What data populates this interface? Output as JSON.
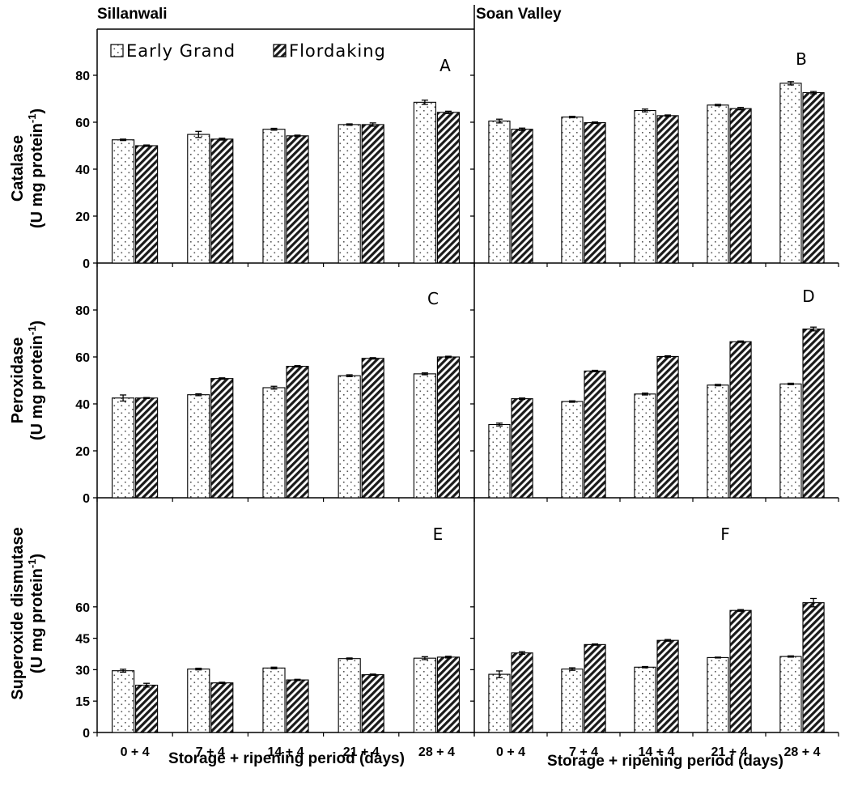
{
  "colors": {
    "text": "#000000",
    "bar_fill_background": "#ffffff",
    "bar_outline": "#000000"
  },
  "sites": [
    "Sillanwali",
    "Soan Valley"
  ],
  "x_axis_label": "Storage + ripening period (days)",
  "y_labels": [
    {
      "line1": "Catalase",
      "line2": "(U mg protein",
      "sup": "-1",
      "close": ")"
    },
    {
      "line1": "Peroxidase",
      "line2": "(U mg protein",
      "sup": "-1",
      "close": ")"
    },
    {
      "line1": "Superoxide dismutase",
      "line2": "(U mg protein",
      "sup": "-1",
      "close": ")"
    }
  ],
  "legend": [
    {
      "name": "Early Grand",
      "pattern": "dots"
    },
    {
      "name": "Flordaking",
      "pattern": "hatch"
    }
  ],
  "chart_data": [
    {
      "type": "bar",
      "panel": "A",
      "site": "Sillanwali",
      "enzyme": "Catalase",
      "categories": [
        "0 + 4",
        "7 + 4",
        "14 + 4",
        "21 + 4",
        "28 + 4"
      ],
      "yticks": [
        0,
        20,
        40,
        60,
        80
      ],
      "ylim": [
        0,
        100
      ],
      "series": [
        {
          "name": "Early Grand",
          "values": [
            52.5,
            54.8,
            57.0,
            59.0,
            68.5
          ],
          "errors": [
            0.3,
            1.3,
            0.4,
            0.3,
            0.9
          ]
        },
        {
          "name": "Flordaking",
          "values": [
            50.0,
            52.8,
            54.2,
            59.0,
            64.2
          ],
          "errors": [
            0.3,
            0.4,
            0.3,
            0.7,
            0.5
          ]
        }
      ]
    },
    {
      "type": "bar",
      "panel": "B",
      "site": "Soan Valley",
      "enzyme": "Catalase",
      "categories": [
        "0 + 4",
        "7 + 4",
        "14 + 4",
        "21 + 4",
        "28 + 4"
      ],
      "yticks": [
        0,
        20,
        40,
        60,
        80
      ],
      "ylim": [
        0,
        100
      ],
      "series": [
        {
          "name": "Early Grand",
          "values": [
            60.5,
            62.2,
            65.0,
            67.3,
            76.6
          ],
          "errors": [
            0.8,
            0.3,
            0.6,
            0.3,
            0.7
          ]
        },
        {
          "name": "Flordaking",
          "values": [
            57.0,
            59.8,
            62.8,
            65.8,
            72.6
          ],
          "errors": [
            0.5,
            0.3,
            0.3,
            0.5,
            0.5
          ]
        }
      ]
    },
    {
      "type": "bar",
      "panel": "C",
      "site": "Sillanwali",
      "enzyme": "Peroxidase",
      "categories": [
        "0 + 4",
        "7 + 4",
        "14 + 4",
        "21 + 4",
        "28 + 4"
      ],
      "yticks": [
        0,
        20,
        40,
        60,
        80
      ],
      "ylim": [
        0,
        100
      ],
      "series": [
        {
          "name": "Early Grand",
          "values": [
            42.5,
            43.9,
            46.9,
            52.0,
            52.8
          ],
          "errors": [
            1.3,
            0.4,
            0.6,
            0.4,
            0.4
          ]
        },
        {
          "name": "Flordaking",
          "values": [
            42.5,
            50.8,
            56.0,
            59.4,
            60.0
          ],
          "errors": [
            0.2,
            0.3,
            0.3,
            0.3,
            0.3
          ]
        }
      ]
    },
    {
      "type": "bar",
      "panel": "D",
      "site": "Soan Valley",
      "enzyme": "Peroxidase",
      "categories": [
        "0 + 4",
        "7 + 4",
        "14 + 4",
        "21 + 4",
        "28 + 4"
      ],
      "yticks": [
        0,
        20,
        40,
        60,
        80
      ],
      "ylim": [
        0,
        100
      ],
      "series": [
        {
          "name": "Early Grand",
          "values": [
            31.2,
            41.0,
            44.2,
            48.0,
            48.5
          ],
          "errors": [
            0.6,
            0.3,
            0.4,
            0.3,
            0.3
          ]
        },
        {
          "name": "Flordaking",
          "values": [
            42.2,
            54.0,
            60.2,
            66.5,
            71.9
          ],
          "errors": [
            0.3,
            0.3,
            0.3,
            0.3,
            0.8
          ]
        }
      ]
    },
    {
      "type": "bar",
      "panel": "E",
      "site": "Sillanwali",
      "enzyme": "Superoxide dismutase",
      "categories": [
        "0 + 4",
        "7 + 4",
        "14 + 4",
        "21 + 4",
        "28 + 4"
      ],
      "yticks": [
        0,
        15,
        30,
        45,
        60
      ],
      "ylim": [
        0,
        75
      ],
      "series": [
        {
          "name": "Early Grand",
          "values": [
            29.5,
            30.3,
            30.8,
            35.3,
            35.5
          ],
          "errors": [
            0.7,
            0.4,
            0.4,
            0.3,
            0.7
          ]
        },
        {
          "name": "Flordaking",
          "values": [
            22.6,
            23.7,
            25.1,
            27.6,
            36.0
          ],
          "errors": [
            0.9,
            0.3,
            0.3,
            0.3,
            0.4
          ]
        }
      ]
    },
    {
      "type": "bar",
      "panel": "F",
      "site": "Soan Valley",
      "enzyme": "Superoxide dismutase",
      "categories": [
        "0 + 4",
        "7 + 4",
        "14 + 4",
        "21 + 4",
        "28 + 4"
      ],
      "yticks": [
        0,
        15,
        30,
        45,
        60
      ],
      "ylim": [
        0,
        75
      ],
      "series": [
        {
          "name": "Early Grand",
          "values": [
            27.8,
            30.3,
            31.2,
            35.8,
            36.3
          ],
          "errors": [
            1.6,
            0.6,
            0.3,
            0.2,
            0.3
          ]
        },
        {
          "name": "Flordaking",
          "values": [
            38.0,
            42.0,
            44.0,
            58.3,
            62.0
          ],
          "errors": [
            0.6,
            0.3,
            0.4,
            0.4,
            2.0
          ]
        }
      ]
    }
  ]
}
